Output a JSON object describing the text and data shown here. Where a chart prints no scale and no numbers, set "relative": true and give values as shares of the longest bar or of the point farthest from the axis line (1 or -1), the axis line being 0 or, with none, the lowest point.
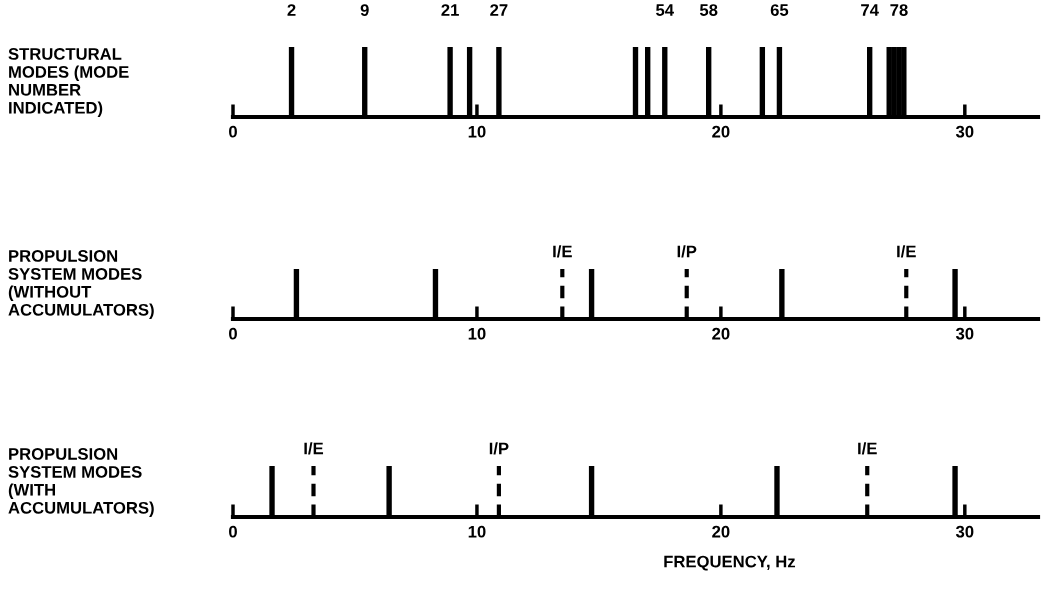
{
  "chart_data": [
    {
      "type": "bar",
      "relative": true,
      "ylabel": "STRUCTURAL\nMODES (MODE\nNUMBER\nINDICATED)",
      "color": "#000000",
      "x": [
        2.4,
        5.4,
        8.9,
        9.7,
        10.9,
        16.5,
        17.0,
        17.7,
        19.5,
        21.7,
        22.4,
        26.1,
        26.9,
        27.1,
        27.3,
        27.5
      ],
      "values": [
        1,
        1,
        1,
        1,
        1,
        1,
        1,
        1,
        1,
        1,
        1,
        1,
        1,
        1,
        1,
        1
      ],
      "xlim": [
        0,
        33
      ],
      "xticks": [
        0,
        10,
        20,
        30
      ],
      "grid": false,
      "annotations": [
        {
          "text": "2",
          "x": 2.4,
          "y": 1
        },
        {
          "text": "9",
          "x": 5.4,
          "y": 1
        },
        {
          "text": "21",
          "x": 8.9,
          "y": 1
        },
        {
          "text": "27",
          "x": 10.9,
          "y": 1
        },
        {
          "text": "54",
          "x": 17.7,
          "y": 1
        },
        {
          "text": "58",
          "x": 19.5,
          "y": 1
        },
        {
          "text": "65",
          "x": 22.4,
          "y": 1
        },
        {
          "text": "74",
          "x": 26.1,
          "y": 1
        },
        {
          "text": "78",
          "x": 27.3,
          "y": 1
        }
      ]
    },
    {
      "type": "bar",
      "relative": true,
      "ylabel": "PROPULSION\nSYSTEM MODES\n(WITHOUT\nACCUMULATORS)",
      "color": "#000000",
      "x": [
        2.6,
        8.3,
        14.7,
        22.5,
        29.6
      ],
      "values": [
        1,
        1,
        1,
        1,
        1
      ],
      "xlim": [
        0,
        33
      ],
      "xticks": [
        0,
        10,
        20,
        30
      ],
      "grid": false,
      "ref_lines": [
        {
          "axis": "x",
          "value": 13.5,
          "label": "I/E",
          "color": "#000000",
          "line_style": "dashed"
        },
        {
          "axis": "x",
          "value": 18.6,
          "label": "I/P",
          "color": "#000000",
          "line_style": "dashed"
        },
        {
          "axis": "x",
          "value": 27.6,
          "label": "I/E",
          "color": "#000000",
          "line_style": "dashed"
        }
      ]
    },
    {
      "type": "bar",
      "relative": true,
      "ylabel": "PROPULSION\nSYSTEM MODES\n(WITH\nACCUMULATORS)",
      "xlabel": "FREQUENCY, Hz",
      "color": "#000000",
      "x": [
        1.6,
        6.4,
        14.7,
        22.3,
        29.6
      ],
      "values": [
        1,
        1,
        1,
        1,
        1
      ],
      "xlim": [
        0,
        33
      ],
      "xticks": [
        0,
        10,
        20,
        30
      ],
      "grid": false,
      "ref_lines": [
        {
          "axis": "x",
          "value": 3.3,
          "label": "I/E",
          "color": "#000000",
          "line_style": "dashed"
        },
        {
          "axis": "x",
          "value": 10.9,
          "label": "I/P",
          "color": "#000000",
          "line_style": "dashed"
        },
        {
          "axis": "x",
          "value": 26.0,
          "label": "I/E",
          "color": "#000000",
          "line_style": "dashed"
        }
      ]
    }
  ]
}
